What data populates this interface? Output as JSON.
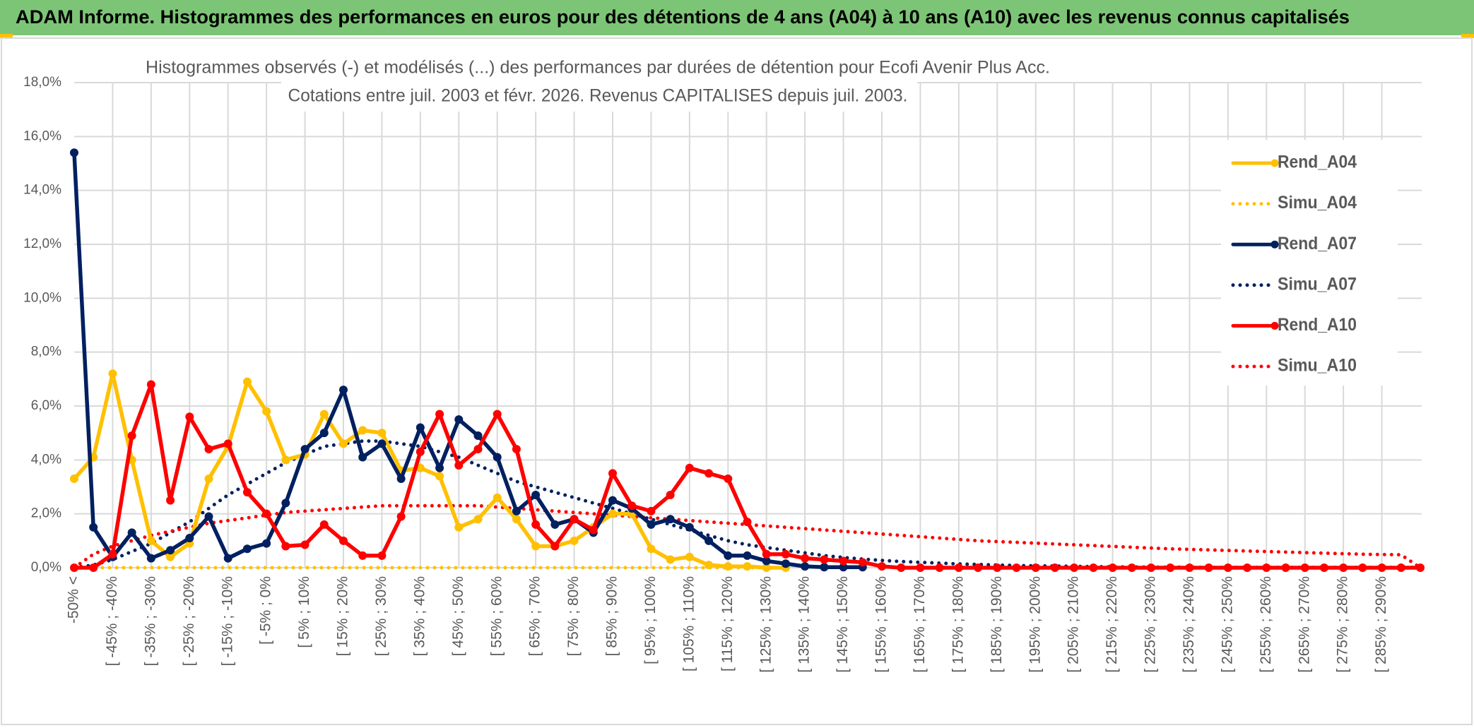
{
  "chart_data": {
    "type": "line",
    "title": "ADAM Informe. Histogrammes des performances en euros pour des détentions de 4 ans (A04) à 10 ans (A10) avec les revenus connus capitalisés",
    "subtitle": [
      "Histogrammes observés (-) et modélisés (...) des performances par durées de détention pour Ecofi Avenir Plus Acc.",
      "Cotations entre juil. 2003 et févr. 2026. Revenus CAPITALISES depuis juil. 2003."
    ],
    "categories": [
      "-50% <",
      null,
      "[ -45% ; -40%",
      null,
      "[ -35% ; -30%",
      null,
      "[ -25% ; -20%",
      null,
      "[ -15% ; -10%",
      null,
      "[ -5% ; 0%",
      null,
      "[ 5% ; 10%",
      null,
      "[ 15% ; 20%",
      null,
      "[ 25% ; 30%",
      null,
      "[ 35% ; 40%",
      null,
      "[ 45% ; 50%",
      null,
      "[ 55% ; 60%",
      null,
      "[ 65% ; 70%",
      null,
      "[ 75% ; 80%",
      null,
      "[ 85% ; 90%",
      null,
      "[ 95% ; 100%",
      null,
      "[ 105% ; 110%",
      null,
      "[ 115% ; 120%",
      null,
      "[ 125% ; 130%",
      null,
      "[ 135% ; 140%",
      null,
      "[ 145% ; 150%",
      null,
      "[ 155% ; 160%",
      null,
      "[ 165% ; 170%",
      null,
      "[ 175% ; 180%",
      null,
      "[ 185% ; 190%",
      null,
      "[ 195% ; 200%",
      null,
      "[ 205% ; 210%",
      null,
      "[ 215% ; 220%",
      null,
      "[ 225% ; 230%",
      null,
      "[ 235% ; 240%",
      null,
      "[ 245% ; 250%",
      null,
      "[ 255% ; 260%",
      null,
      "[ 265% ; 270%",
      null,
      "[ 275% ; 280%",
      null,
      "[ 285% ; 290%",
      null,
      null
    ],
    "series": [
      {
        "name": "Rend_A04",
        "color": "#ffc000",
        "line_style": "solid",
        "values": [
          3.3,
          4.1,
          7.2,
          4.0,
          1.0,
          0.4,
          0.9,
          3.3,
          4.5,
          6.9,
          5.8,
          4.0,
          4.2,
          5.7,
          4.6,
          5.1,
          5.0,
          3.6,
          3.7,
          3.4,
          1.5,
          1.8,
          2.6,
          1.8,
          0.8,
          0.8,
          1.0,
          1.5,
          2.0,
          2.0,
          0.7,
          0.3,
          0.4,
          0.1,
          0.05,
          0.05,
          0,
          0,
          null,
          null,
          null,
          null,
          null,
          null,
          null,
          null,
          null,
          null,
          null,
          null,
          null,
          null,
          null,
          null,
          null,
          null,
          null,
          null,
          null,
          null,
          null,
          null,
          null,
          null,
          null,
          null,
          null,
          null,
          null,
          null,
          null
        ]
      },
      {
        "name": "Simu_A04",
        "color": "#ffc000",
        "line_style": "dotted",
        "values": [
          0,
          0,
          0,
          0,
          0,
          0,
          0,
          0,
          0,
          0,
          0,
          0,
          0,
          0,
          0,
          0,
          0,
          0,
          0,
          0,
          0,
          0,
          0,
          0,
          0,
          0,
          0,
          0,
          0,
          0,
          0,
          0,
          0,
          0,
          0,
          0,
          0,
          0,
          null,
          null,
          null,
          null,
          null,
          null,
          null,
          null,
          null,
          null,
          null,
          null,
          null,
          null,
          null,
          null,
          null,
          null,
          null,
          null,
          null,
          null,
          null,
          null,
          null,
          null,
          null,
          null,
          null,
          null,
          null,
          null,
          null
        ]
      },
      {
        "name": "Rend_A07",
        "color": "#002060",
        "line_style": "solid",
        "values": [
          15.4,
          1.5,
          0.4,
          1.3,
          0.35,
          0.65,
          1.1,
          1.9,
          0.35,
          0.7,
          0.9,
          2.4,
          4.4,
          5.0,
          6.6,
          4.1,
          4.6,
          3.3,
          5.2,
          3.7,
          5.5,
          4.9,
          4.1,
          2.1,
          2.7,
          1.6,
          1.8,
          1.3,
          2.5,
          2.2,
          1.6,
          1.8,
          1.5,
          1.0,
          0.45,
          0.45,
          0.25,
          0.15,
          0.05,
          0.02,
          0.02,
          0.02,
          null,
          null,
          null,
          null,
          null,
          null,
          null,
          null,
          null,
          null,
          null,
          null,
          null,
          null,
          null,
          null,
          null,
          null,
          null,
          null,
          null,
          null,
          null,
          null,
          null,
          null,
          null,
          null,
          null
        ]
      },
      {
        "name": "Simu_A07",
        "color": "#002060",
        "line_style": "dotted",
        "values": [
          0,
          0.1,
          0.3,
          0.6,
          0.9,
          1.3,
          1.7,
          2.2,
          2.7,
          3.1,
          3.5,
          3.9,
          4.2,
          4.5,
          4.6,
          4.7,
          4.7,
          4.6,
          4.5,
          4.3,
          4.1,
          3.8,
          3.5,
          3.2,
          3.0,
          2.8,
          2.6,
          2.4,
          2.2,
          2.0,
          1.8,
          1.6,
          1.4,
          1.2,
          1.0,
          0.85,
          0.75,
          0.65,
          0.55,
          0.45,
          0.38,
          0.32,
          0.27,
          0.23,
          0.2,
          0.17,
          0.14,
          0.12,
          0.1,
          0.08,
          0.07,
          0.06,
          0.05,
          0.04,
          0.03,
          0.03,
          0.02,
          0.02,
          0.02,
          0.01,
          0.01,
          0.01,
          0.01,
          0.01,
          0.01,
          0.01,
          0.01,
          0.01,
          0.01,
          0.01,
          0.01
        ]
      },
      {
        "name": "Rend_A10",
        "color": "#ff0000",
        "line_style": "solid",
        "values": [
          0,
          0,
          0.5,
          4.9,
          6.8,
          2.5,
          5.6,
          4.4,
          4.6,
          2.8,
          2.0,
          0.8,
          0.85,
          1.6,
          1.0,
          0.45,
          0.45,
          1.9,
          4.3,
          5.7,
          3.8,
          4.4,
          5.7,
          4.4,
          1.6,
          0.8,
          1.8,
          1.4,
          3.5,
          2.3,
          2.1,
          2.7,
          3.7,
          3.5,
          3.3,
          1.7,
          0.5,
          0.5,
          0.35,
          0.3,
          0.25,
          0.2,
          0.05,
          0,
          0,
          0,
          0,
          0,
          0,
          0,
          0,
          0,
          0,
          0,
          0,
          0,
          0,
          0,
          0,
          0,
          0,
          0,
          0,
          0,
          0,
          0,
          0,
          0,
          0,
          0,
          0
        ]
      },
      {
        "name": "Simu_A10",
        "color": "#ff0000",
        "line_style": "dotted",
        "values": [
          0,
          0.5,
          0.8,
          1.0,
          1.2,
          1.35,
          1.5,
          1.65,
          1.75,
          1.85,
          1.95,
          2.05,
          2.1,
          2.15,
          2.2,
          2.25,
          2.3,
          2.3,
          2.3,
          2.3,
          2.3,
          2.3,
          2.25,
          2.2,
          2.15,
          2.1,
          2.05,
          2.0,
          1.95,
          1.9,
          1.85,
          1.8,
          1.75,
          1.7,
          1.65,
          1.6,
          1.55,
          1.5,
          1.45,
          1.4,
          1.35,
          1.3,
          1.25,
          1.2,
          1.15,
          1.1,
          1.05,
          1.0,
          0.97,
          0.94,
          0.91,
          0.88,
          0.85,
          0.82,
          0.79,
          0.76,
          0.73,
          0.7,
          0.68,
          0.66,
          0.64,
          0.62,
          0.6,
          0.58,
          0.56,
          0.54,
          0.52,
          0.5,
          0.49,
          0.48,
          0
        ]
      }
    ],
    "ylim": [
      0,
      18
    ],
    "yticks": [
      {
        "value": 0,
        "label": "0,0%"
      },
      {
        "value": 2,
        "label": "2,0%"
      },
      {
        "value": 4,
        "label": "4,0%"
      },
      {
        "value": 6,
        "label": "6,0%"
      },
      {
        "value": 8,
        "label": "8,0%"
      },
      {
        "value": 10,
        "label": "10,0%"
      },
      {
        "value": 12,
        "label": "12,0%"
      },
      {
        "value": 14,
        "label": "14,0%"
      },
      {
        "value": 16,
        "label": "16,0%"
      },
      {
        "value": 18,
        "label": "18,0%"
      }
    ],
    "grid": true,
    "legend": "right"
  }
}
